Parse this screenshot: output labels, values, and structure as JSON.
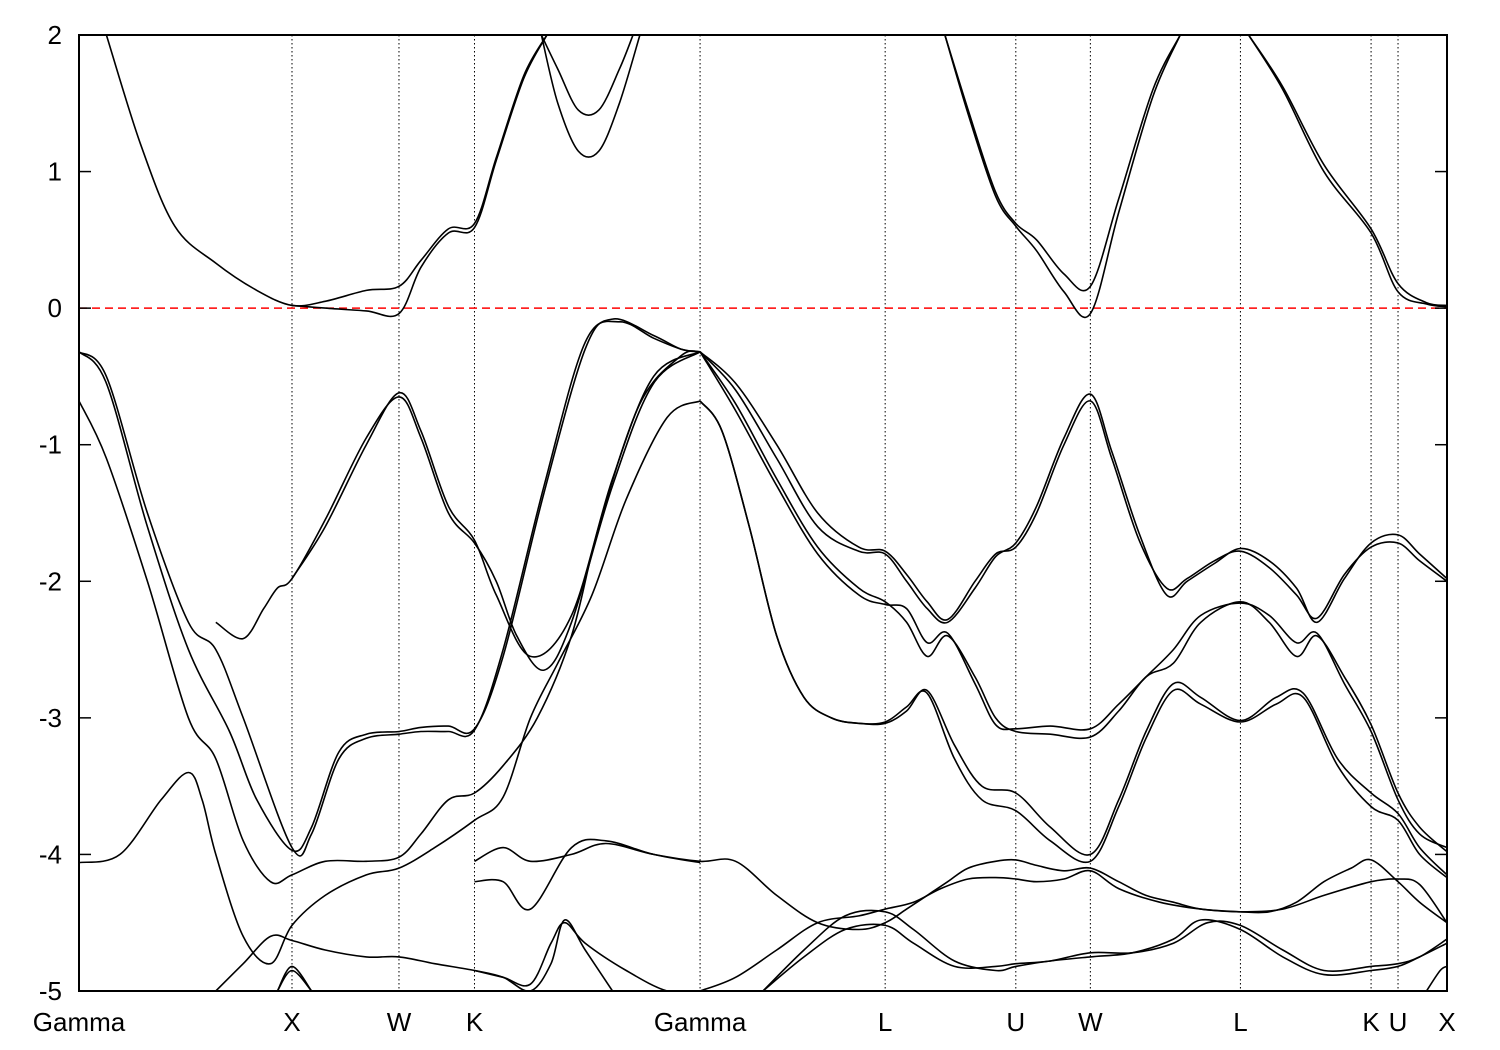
{
  "chart_data": {
    "type": "line",
    "title": "",
    "xlabel": "",
    "ylabel": "",
    "ylim": [
      -5,
      2
    ],
    "yticks": [
      2,
      1,
      0,
      -1,
      -2,
      -3,
      -4,
      -5
    ],
    "ytick_labels": [
      "2",
      "1",
      "0",
      "-1",
      "-2",
      "-3",
      "-4",
      "-5"
    ],
    "xlim": [
      0,
      10
    ],
    "kpoints": [
      {
        "label": "Gamma",
        "x": 0.0
      },
      {
        "label": "X",
        "x": 1.557
      },
      {
        "label": "W",
        "x": 2.339
      },
      {
        "label": "K",
        "x": 2.891
      },
      {
        "label": "Gamma",
        "x": 4.54
      },
      {
        "label": "L",
        "x": 5.893
      },
      {
        "label": "U",
        "x": 6.848
      },
      {
        "label": "W",
        "x": 7.393
      },
      {
        "label": "L",
        "x": 8.49
      },
      {
        "label": "K",
        "x": 9.445
      },
      {
        "label": "U",
        "x": 9.642
      },
      {
        "label": "X",
        "x": 10.0
      }
    ],
    "fermi_level": {
      "y": 0,
      "color": "#ff0000",
      "style": "dashed"
    },
    "grid": "vertical dotted lines at k-points",
    "series": [
      {
        "x": [
          0.2,
          0.45,
          0.7,
          1.0,
          1.3,
          1.557,
          1.8,
          2.1,
          2.339,
          2.5,
          2.7,
          2.891,
          3.05,
          3.25,
          3.42
        ],
        "values": [
          2.0,
          1.2,
          0.6,
          0.33,
          0.13,
          0.02,
          0.05,
          0.13,
          0.16,
          0.35,
          0.58,
          0.62,
          1.1,
          1.7,
          2.0
        ]
      },
      {
        "x": [
          1.557,
          1.8,
          2.1,
          2.339,
          2.5,
          2.7,
          2.891,
          3.05,
          3.25,
          3.42
        ],
        "values": [
          0.02,
          0.0,
          -0.02,
          -0.04,
          0.3,
          0.55,
          0.59,
          1.08,
          1.68,
          2.0
        ]
      },
      {
        "x": [
          3.38,
          3.5,
          3.65,
          3.8,
          3.95,
          4.05
        ],
        "values": [
          2.0,
          1.75,
          1.45,
          1.45,
          1.75,
          2.0
        ]
      },
      {
        "x": [
          3.38,
          3.5,
          3.65,
          3.8,
          3.95,
          4.1
        ],
        "values": [
          2.0,
          1.5,
          1.15,
          1.15,
          1.5,
          2.0
        ]
      },
      {
        "x": [
          6.33,
          6.5,
          6.7,
          6.848,
          7.0,
          7.2,
          7.393,
          7.6,
          7.85,
          8.05
        ],
        "values": [
          2.0,
          1.45,
          0.85,
          0.62,
          0.5,
          0.25,
          0.16,
          0.8,
          1.6,
          2.0
        ]
      },
      {
        "x": [
          6.33,
          6.5,
          6.7,
          6.848,
          7.0,
          7.2,
          7.393,
          7.6,
          7.85,
          8.05
        ],
        "values": [
          2.0,
          1.42,
          0.82,
          0.6,
          0.42,
          0.12,
          -0.04,
          0.7,
          1.55,
          2.0
        ]
      },
      {
        "x": [
          8.55,
          8.8,
          9.1,
          9.445,
          9.642,
          9.85,
          10.0
        ],
        "values": [
          2.0,
          1.62,
          1.05,
          0.58,
          0.18,
          0.04,
          0.02
        ]
      },
      {
        "x": [
          8.55,
          8.8,
          9.1,
          9.445,
          9.642,
          9.85,
          10.0
        ],
        "values": [
          2.0,
          1.6,
          1.0,
          0.55,
          0.12,
          0.03,
          0.01
        ]
      },
      {
        "x": [
          0.0,
          0.2,
          0.5,
          0.8,
          1.0,
          1.2,
          1.557,
          1.7,
          1.9,
          2.1,
          2.339,
          2.5,
          2.7,
          2.891,
          3.1,
          3.4,
          3.7,
          3.95,
          4.2,
          4.4,
          4.54
        ],
        "values": [
          -0.32,
          -0.5,
          -1.5,
          -2.3,
          -2.5,
          -3.0,
          -3.95,
          -3.85,
          -3.3,
          -3.15,
          -3.12,
          -3.1,
          -3.1,
          -3.09,
          -2.5,
          -1.3,
          -0.25,
          -0.1,
          -0.22,
          -0.3,
          -0.32
        ]
      },
      {
        "x": [
          0.0,
          0.2,
          0.5,
          0.8,
          1.1,
          1.3,
          1.557,
          1.7,
          1.9,
          2.1,
          2.339,
          2.5,
          2.7,
          2.891,
          3.1,
          3.4,
          3.7,
          3.9,
          4.2,
          4.4,
          4.54
        ],
        "values": [
          -0.32,
          -0.55,
          -1.6,
          -2.5,
          -3.1,
          -3.6,
          -3.97,
          -3.8,
          -3.25,
          -3.12,
          -3.1,
          -3.07,
          -3.06,
          -3.08,
          -2.55,
          -1.35,
          -0.3,
          -0.08,
          -0.2,
          -0.3,
          -0.32
        ]
      },
      {
        "x": [
          0.0,
          0.2,
          0.5,
          0.8,
          1.0,
          1.2,
          1.4,
          1.557,
          1.8,
          2.1,
          2.339,
          2.5,
          2.7,
          2.891,
          3.1,
          3.35,
          3.6,
          3.8,
          4.1,
          4.4,
          4.54
        ],
        "values": [
          -0.68,
          -1.1,
          -2.0,
          -3.0,
          -3.3,
          -3.9,
          -4.2,
          -4.15,
          -4.05,
          -4.05,
          -4.02,
          -3.85,
          -3.6,
          -3.55,
          -3.35,
          -3.0,
          -2.4,
          -1.6,
          -0.7,
          -0.35,
          -0.32
        ]
      },
      {
        "x": [
          0.0,
          0.3,
          0.6,
          0.8,
          0.9,
          1.0,
          1.2,
          1.4,
          1.557,
          1.8,
          2.1,
          2.339,
          2.6,
          2.891,
          3.1,
          3.3,
          3.5,
          3.75,
          4.0,
          4.3,
          4.54
        ],
        "values": [
          -4.06,
          -4.0,
          -3.6,
          -3.4,
          -3.6,
          -4.0,
          -4.6,
          -4.8,
          -4.52,
          -4.3,
          -4.15,
          -4.1,
          -3.95,
          -3.75,
          -3.58,
          -3.0,
          -2.6,
          -2.1,
          -1.4,
          -0.8,
          -0.68
        ]
      },
      {
        "x": [
          1.0,
          1.2,
          1.35,
          1.45,
          1.557,
          1.8,
          2.1,
          2.339,
          2.5,
          2.7,
          2.891,
          3.05,
          3.2,
          3.4,
          3.6,
          3.9,
          4.2,
          4.54
        ],
        "values": [
          -2.3,
          -2.42,
          -2.2,
          -2.05,
          -1.98,
          -1.55,
          -0.95,
          -0.65,
          -0.95,
          -1.5,
          -1.72,
          -2.0,
          -2.4,
          -2.65,
          -2.3,
          -1.3,
          -0.55,
          -0.32
        ]
      },
      {
        "x": [
          1.557,
          1.8,
          2.1,
          2.339,
          2.5,
          2.7,
          2.891,
          3.05,
          3.3,
          3.6,
          3.9,
          4.2,
          4.54
        ],
        "values": [
          -1.98,
          -1.6,
          -1.0,
          -0.62,
          -0.9,
          -1.45,
          -1.7,
          -2.1,
          -2.55,
          -2.25,
          -1.25,
          -0.5,
          -0.32
        ]
      },
      {
        "x": [
          2.891,
          3.1,
          3.3,
          3.6,
          3.85,
          4.2,
          4.54,
          4.8,
          5.1,
          5.4,
          5.7,
          5.893,
          6.05,
          6.2,
          6.35,
          6.5,
          6.7,
          6.848,
          7.0,
          7.2,
          7.393,
          7.6,
          7.8,
          8.0,
          8.2,
          8.49,
          8.7,
          8.9,
          9.1,
          9.3,
          9.445,
          9.642,
          9.8,
          10.0
        ],
        "values": [
          -4.05,
          -3.95,
          -4.05,
          -4.0,
          -3.92,
          -4.0,
          -4.05,
          -4.05,
          -4.3,
          -4.5,
          -4.55,
          -4.5,
          -4.4,
          -4.3,
          -4.2,
          -4.1,
          -4.05,
          -4.04,
          -4.08,
          -4.12,
          -4.1,
          -4.2,
          -4.3,
          -4.35,
          -4.4,
          -4.42,
          -4.42,
          -4.35,
          -4.2,
          -4.1,
          -4.04,
          -4.2,
          -4.35,
          -4.5
        ]
      },
      {
        "x": [
          2.891,
          3.1,
          3.3,
          3.6,
          3.85,
          4.2,
          4.54
        ],
        "values": [
          -4.2,
          -4.2,
          -4.4,
          -3.95,
          -3.9,
          -4.0,
          -4.06
        ]
      },
      {
        "x": [
          4.54,
          4.8,
          5.1,
          5.4,
          5.7,
          5.893,
          6.1,
          6.3,
          6.5,
          6.7,
          6.848,
          7.0,
          7.2,
          7.393,
          7.6,
          7.9,
          8.2,
          8.49,
          8.8,
          9.1,
          9.445,
          9.642,
          9.8,
          10.0
        ],
        "values": [
          -5.0,
          -4.9,
          -4.7,
          -4.5,
          -4.45,
          -4.4,
          -4.35,
          -4.25,
          -4.18,
          -4.17,
          -4.18,
          -4.2,
          -4.18,
          -4.12,
          -4.25,
          -4.35,
          -4.4,
          -4.42,
          -4.4,
          -4.3,
          -4.2,
          -4.18,
          -4.22,
          -4.5
        ]
      },
      {
        "x": [
          5.0,
          5.3,
          5.6,
          5.893,
          6.1,
          6.4,
          6.7,
          6.848,
          7.1,
          7.393,
          7.7,
          8.0,
          8.25,
          8.49,
          8.8,
          9.1,
          9.445,
          9.642,
          9.8,
          10.0
        ],
        "values": [
          -5.0,
          -4.75,
          -4.55,
          -4.52,
          -4.65,
          -4.82,
          -4.82,
          -4.8,
          -4.78,
          -4.72,
          -4.72,
          -4.65,
          -4.5,
          -4.52,
          -4.7,
          -4.85,
          -4.82,
          -4.8,
          -4.75,
          -4.62
        ]
      },
      {
        "x": [
          5.0,
          5.3,
          5.6,
          5.893,
          6.1,
          6.4,
          6.7,
          6.848,
          7.1,
          7.393,
          7.7,
          8.0,
          8.2,
          8.49,
          8.8,
          9.1,
          9.445,
          9.642,
          9.8,
          10.0
        ],
        "values": [
          -5.0,
          -4.7,
          -4.45,
          -4.42,
          -4.55,
          -4.78,
          -4.85,
          -4.82,
          -4.78,
          -4.75,
          -4.72,
          -4.62,
          -4.48,
          -4.55,
          -4.75,
          -4.88,
          -4.85,
          -4.82,
          -4.75,
          -4.65
        ]
      },
      {
        "x": [
          4.54,
          4.8,
          5.1,
          5.4,
          5.7,
          5.893,
          6.05,
          6.2,
          6.35,
          6.55,
          6.7,
          6.848,
          7.0,
          7.2,
          7.393,
          7.55,
          7.75,
          7.95,
          8.1,
          8.3,
          8.49,
          8.7,
          8.9,
          9.05,
          9.25,
          9.445,
          9.642,
          9.8,
          10.0
        ],
        "values": [
          -0.32,
          -0.55,
          -1.0,
          -1.5,
          -1.75,
          -1.78,
          -1.95,
          -2.15,
          -2.28,
          -2.0,
          -1.8,
          -1.75,
          -1.5,
          -1.0,
          -0.68,
          -1.1,
          -1.7,
          -2.05,
          -1.98,
          -1.85,
          -1.78,
          -1.9,
          -2.1,
          -2.27,
          -1.95,
          -1.75,
          -1.72,
          -1.85,
          -2.0
        ]
      },
      {
        "x": [
          4.54,
          4.8,
          5.1,
          5.4,
          5.7,
          5.893,
          6.05,
          6.2,
          6.35,
          6.55,
          6.7,
          6.848,
          7.0,
          7.2,
          7.393,
          7.55,
          7.75,
          7.95,
          8.1,
          8.3,
          8.49,
          8.7,
          8.9,
          9.05,
          9.25,
          9.445,
          9.642,
          9.8,
          10.0
        ],
        "values": [
          -0.32,
          -0.6,
          -1.1,
          -1.6,
          -1.78,
          -1.8,
          -2.0,
          -2.2,
          -2.3,
          -2.05,
          -1.82,
          -1.72,
          -1.45,
          -0.95,
          -0.63,
          -1.05,
          -1.65,
          -2.1,
          -2.0,
          -1.87,
          -1.76,
          -1.85,
          -2.05,
          -2.3,
          -1.98,
          -1.72,
          -1.66,
          -1.8,
          -1.98
        ]
      },
      {
        "x": [
          4.54,
          4.8,
          5.1,
          5.4,
          5.7,
          5.893,
          6.05,
          6.2,
          6.35,
          6.55,
          6.7,
          6.848,
          7.1,
          7.393,
          7.6,
          7.8,
          8.0,
          8.2,
          8.49,
          8.7,
          8.9,
          9.05,
          9.25,
          9.445,
          9.642,
          9.8,
          10.0
        ],
        "values": [
          -0.32,
          -0.7,
          -1.25,
          -1.75,
          -2.05,
          -2.15,
          -2.3,
          -2.55,
          -2.4,
          -2.7,
          -3.0,
          -3.1,
          -3.12,
          -3.14,
          -2.95,
          -2.7,
          -2.6,
          -2.3,
          -2.15,
          -2.3,
          -2.55,
          -2.4,
          -2.7,
          -3.05,
          -3.55,
          -3.8,
          -3.98
        ]
      },
      {
        "x": [
          4.54,
          4.8,
          5.1,
          5.4,
          5.7,
          5.893,
          6.05,
          6.2,
          6.35,
          6.55,
          6.7,
          6.848,
          7.1,
          7.393,
          7.6,
          7.8,
          8.0,
          8.2,
          8.49,
          8.7,
          8.9,
          9.05,
          9.25,
          9.445,
          9.642,
          9.8,
          10.0
        ],
        "values": [
          -0.32,
          -0.75,
          -1.3,
          -1.8,
          -2.1,
          -2.17,
          -2.2,
          -2.45,
          -2.38,
          -2.75,
          -3.05,
          -3.08,
          -3.06,
          -3.08,
          -2.9,
          -2.7,
          -2.5,
          -2.25,
          -2.16,
          -2.25,
          -2.45,
          -2.38,
          -2.75,
          -3.1,
          -3.6,
          -3.85,
          -3.95
        ]
      },
      {
        "x": [
          4.54,
          4.7,
          4.9,
          5.1,
          5.3,
          5.5,
          5.7,
          5.893,
          6.05,
          6.2,
          6.4,
          6.6,
          6.848,
          7.1,
          7.393,
          7.6,
          7.8,
          8.0,
          8.2,
          8.49,
          8.75,
          8.95,
          9.2,
          9.445,
          9.642,
          9.8,
          10.0
        ],
        "values": [
          -0.68,
          -0.9,
          -1.6,
          -2.4,
          -2.85,
          -3.0,
          -3.04,
          -3.04,
          -2.95,
          -2.8,
          -3.2,
          -3.5,
          -3.55,
          -3.8,
          -4.0,
          -3.6,
          -3.1,
          -2.75,
          -2.85,
          -3.02,
          -2.85,
          -2.82,
          -3.3,
          -3.55,
          -3.7,
          -3.95,
          -4.15
        ]
      },
      {
        "x": [
          4.54,
          4.7,
          4.9,
          5.1,
          5.3,
          5.5,
          5.7,
          5.893,
          6.05,
          6.2,
          6.4,
          6.6,
          6.848,
          7.1,
          7.393,
          7.6,
          7.8,
          8.0,
          8.2,
          8.49,
          8.75,
          8.95,
          9.2,
          9.445,
          9.642,
          9.8,
          10.0
        ],
        "values": [
          -0.68,
          -0.9,
          -1.6,
          -2.4,
          -2.85,
          -3.0,
          -3.04,
          -3.03,
          -2.92,
          -2.82,
          -3.3,
          -3.6,
          -3.68,
          -3.9,
          -4.05,
          -3.65,
          -3.15,
          -2.8,
          -2.9,
          -3.03,
          -2.9,
          -2.85,
          -3.35,
          -3.65,
          -3.75,
          -4.0,
          -4.17
        ]
      },
      {
        "x": [
          2.891,
          3.1,
          3.3,
          3.45,
          3.55,
          3.7,
          4.0,
          4.3,
          4.54
        ],
        "values": [
          -4.85,
          -4.9,
          -4.95,
          -4.65,
          -4.5,
          -4.65,
          -4.85,
          -5.0,
          -5.0
        ]
      },
      {
        "x": [
          1.0,
          1.2,
          1.4,
          1.557,
          1.8,
          2.1,
          2.339,
          2.6,
          2.891,
          3.1,
          3.3,
          3.45,
          3.55,
          3.7,
          3.9
        ],
        "values": [
          -5.0,
          -4.8,
          -4.6,
          -4.63,
          -4.7,
          -4.75,
          -4.75,
          -4.8,
          -4.85,
          -4.9,
          -5.0,
          -4.8,
          -4.48,
          -4.7,
          -5.0
        ]
      },
      {
        "x": [
          1.45,
          1.557,
          1.7
        ],
        "values": [
          -5.0,
          -4.82,
          -5.0
        ]
      },
      {
        "x": [
          1.45,
          1.557,
          1.7
        ],
        "values": [
          -5.0,
          -4.85,
          -5.0
        ]
      },
      {
        "x": [
          9.85,
          9.95,
          10.0
        ],
        "values": [
          -5.0,
          -4.85,
          -4.82
        ]
      }
    ]
  }
}
